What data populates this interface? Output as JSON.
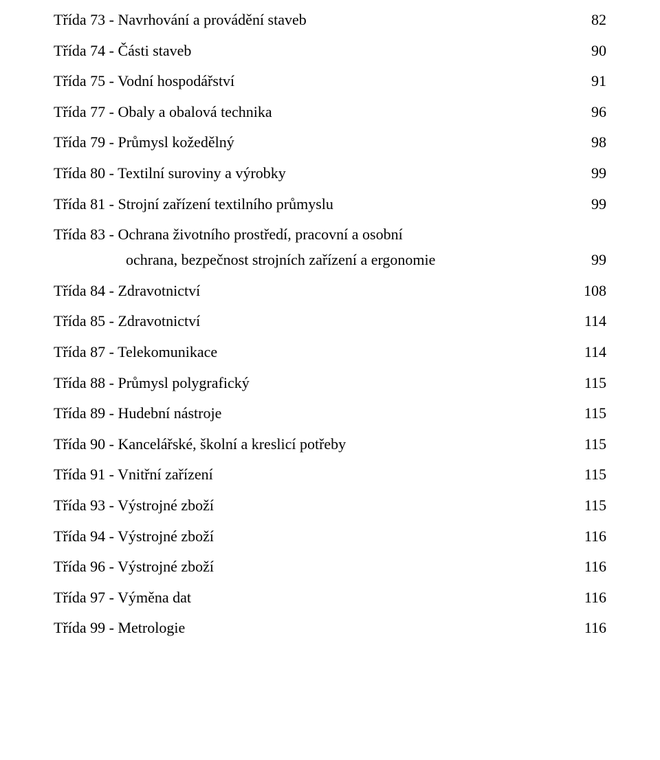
{
  "rows": [
    {
      "label": "Třída 73 - Navrhování a provádění staveb",
      "page": "82",
      "cls": "row-normal"
    },
    {
      "label": "Třída 74 - Části staveb",
      "page": "90",
      "cls": "row-normal"
    },
    {
      "label": "Třída 75 - Vodní hospodářství",
      "page": "91",
      "cls": "row-normal"
    },
    {
      "label": "Třída 77 - Obaly a obalová technika",
      "page": "96",
      "cls": "row-normal"
    },
    {
      "label": "Třída 79 - Průmysl kožedělný",
      "page": "98",
      "cls": "row-normal"
    },
    {
      "label": "Třída 80 - Textilní suroviny a výrobky",
      "page": "99",
      "cls": "row-normal"
    },
    {
      "label": "Třída 81 - Strojní zařízení textilního průmyslu",
      "page": "99",
      "cls": "row-normal"
    },
    {
      "label": "Třída 83 - Ochrana životního prostředí, pracovní a osobní",
      "page": "",
      "cls": "row-tight"
    },
    {
      "label": "ochrana, bezpečnost strojních zařízení a ergonomie",
      "page": "99",
      "cls": "row-normal",
      "indent": true
    },
    {
      "label": "Třída 84 - Zdravotnictví",
      "page": "108",
      "cls": "row-normal"
    },
    {
      "label": "Třída 85 - Zdravotnictví",
      "page": "114",
      "cls": "row-normal"
    },
    {
      "label": "Třída 87 - Telekomunikace",
      "page": "114",
      "cls": "row-normal"
    },
    {
      "label": "Třída 88 - Průmysl polygrafický",
      "page": "115",
      "cls": "row-normal"
    },
    {
      "label": "Třída 89 - Hudební nástroje",
      "page": "115",
      "cls": "row-normal"
    },
    {
      "label": "Třída 90 - Kancelářské, školní a kreslicí potřeby",
      "page": "115",
      "cls": "row-normal"
    },
    {
      "label": "Třída 91 - Vnitřní zařízení",
      "page": "115",
      "cls": "row-normal"
    },
    {
      "label": "Třída 93 - Výstrojné zboží",
      "page": "115",
      "cls": "row-normal"
    },
    {
      "label": "Třída 94 - Výstrojné zboží",
      "page": "116",
      "cls": "row-normal"
    },
    {
      "label": "Třída 96 - Výstrojné zboží",
      "page": "116",
      "cls": "row-normal"
    },
    {
      "label": "Třída 97 - Výměna dat",
      "page": "116",
      "cls": "row-normal"
    },
    {
      "label": "Třída 99 - Metrologie",
      "page": "116",
      "cls": "row-normal"
    }
  ],
  "colors": {
    "background": "#ffffff",
    "text": "#000000"
  },
  "typography": {
    "font_family": "Times New Roman",
    "font_size_pt": 16
  }
}
